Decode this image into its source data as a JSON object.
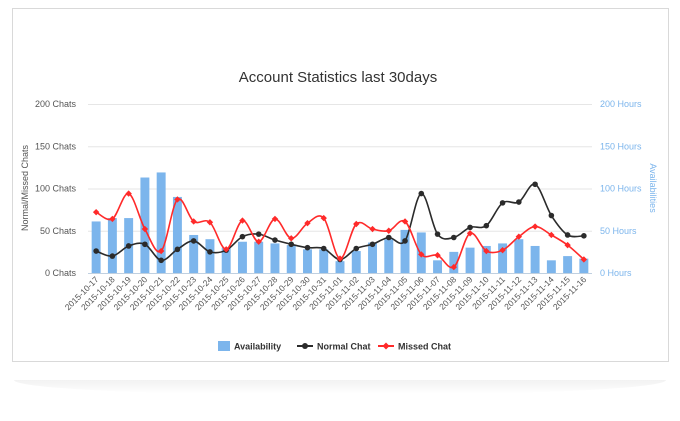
{
  "chart_data": {
    "type": "bar+line",
    "title": "Account Statistics last 30days",
    "y_left_label": "Normal/Missed Chats",
    "y_right_label": "Availabilities",
    "y_left_ticks": [
      "200 Chats",
      "150 Chats",
      "100 Chats",
      "50 Chats",
      "0 Chats"
    ],
    "y_right_ticks": [
      "200 Hours",
      "150 Hours",
      "100 Hours",
      "50 Hours",
      "0 Hours"
    ],
    "y_left_range": [
      0,
      200
    ],
    "y_right_range": [
      0,
      200
    ],
    "categories": [
      "2015-10-17",
      "2015-10-18",
      "2015-10-19",
      "2015-10-20",
      "2015-10-21",
      "2015-10-22",
      "2015-10-23",
      "2015-10-24",
      "2015-10-25",
      "2015-10-26",
      "2015-10-27",
      "2015-10-28",
      "2015-10-29",
      "2015-10-30",
      "2015-10-31",
      "2015-11-01",
      "2015-11-02",
      "2015-11-03",
      "2015-11-04",
      "2015-11-05",
      "2015-11-06",
      "2015-11-07",
      "2015-11-08",
      "2015-11-09",
      "2015-11-10",
      "2015-11-11",
      "2015-11-12",
      "2015-11-13",
      "2015-11-14",
      "2015-11-15",
      "2015-11-16"
    ],
    "series": [
      {
        "name": "Availability",
        "type": "bar",
        "axis": "right",
        "color": "#7cb5ec",
        "values": [
          61,
          65,
          65,
          113,
          119,
          90,
          45,
          40,
          30,
          37,
          37,
          35,
          33,
          28,
          28,
          14,
          26,
          36,
          40,
          51,
          48,
          15,
          25,
          30,
          32,
          35,
          40,
          32,
          15,
          20,
          17
        ]
      },
      {
        "name": "Normal Chat",
        "type": "line",
        "axis": "left",
        "color": "#2b2b2b",
        "values": [
          26,
          20,
          32,
          34,
          15,
          28,
          38,
          25,
          27,
          43,
          46,
          39,
          34,
          30,
          29,
          16,
          29,
          34,
          42,
          38,
          94,
          46,
          42,
          54,
          56,
          83,
          84,
          105,
          68,
          45,
          44
        ]
      },
      {
        "name": "Missed Chat",
        "type": "line",
        "axis": "left",
        "color": "#ff2a2a",
        "values": [
          72,
          64,
          94,
          52,
          26,
          87,
          61,
          60,
          28,
          62,
          37,
          64,
          41,
          59,
          65,
          17,
          58,
          52,
          50,
          61,
          22,
          21,
          7,
          47,
          26,
          27,
          43,
          55,
          45,
          33,
          16
        ]
      }
    ]
  }
}
